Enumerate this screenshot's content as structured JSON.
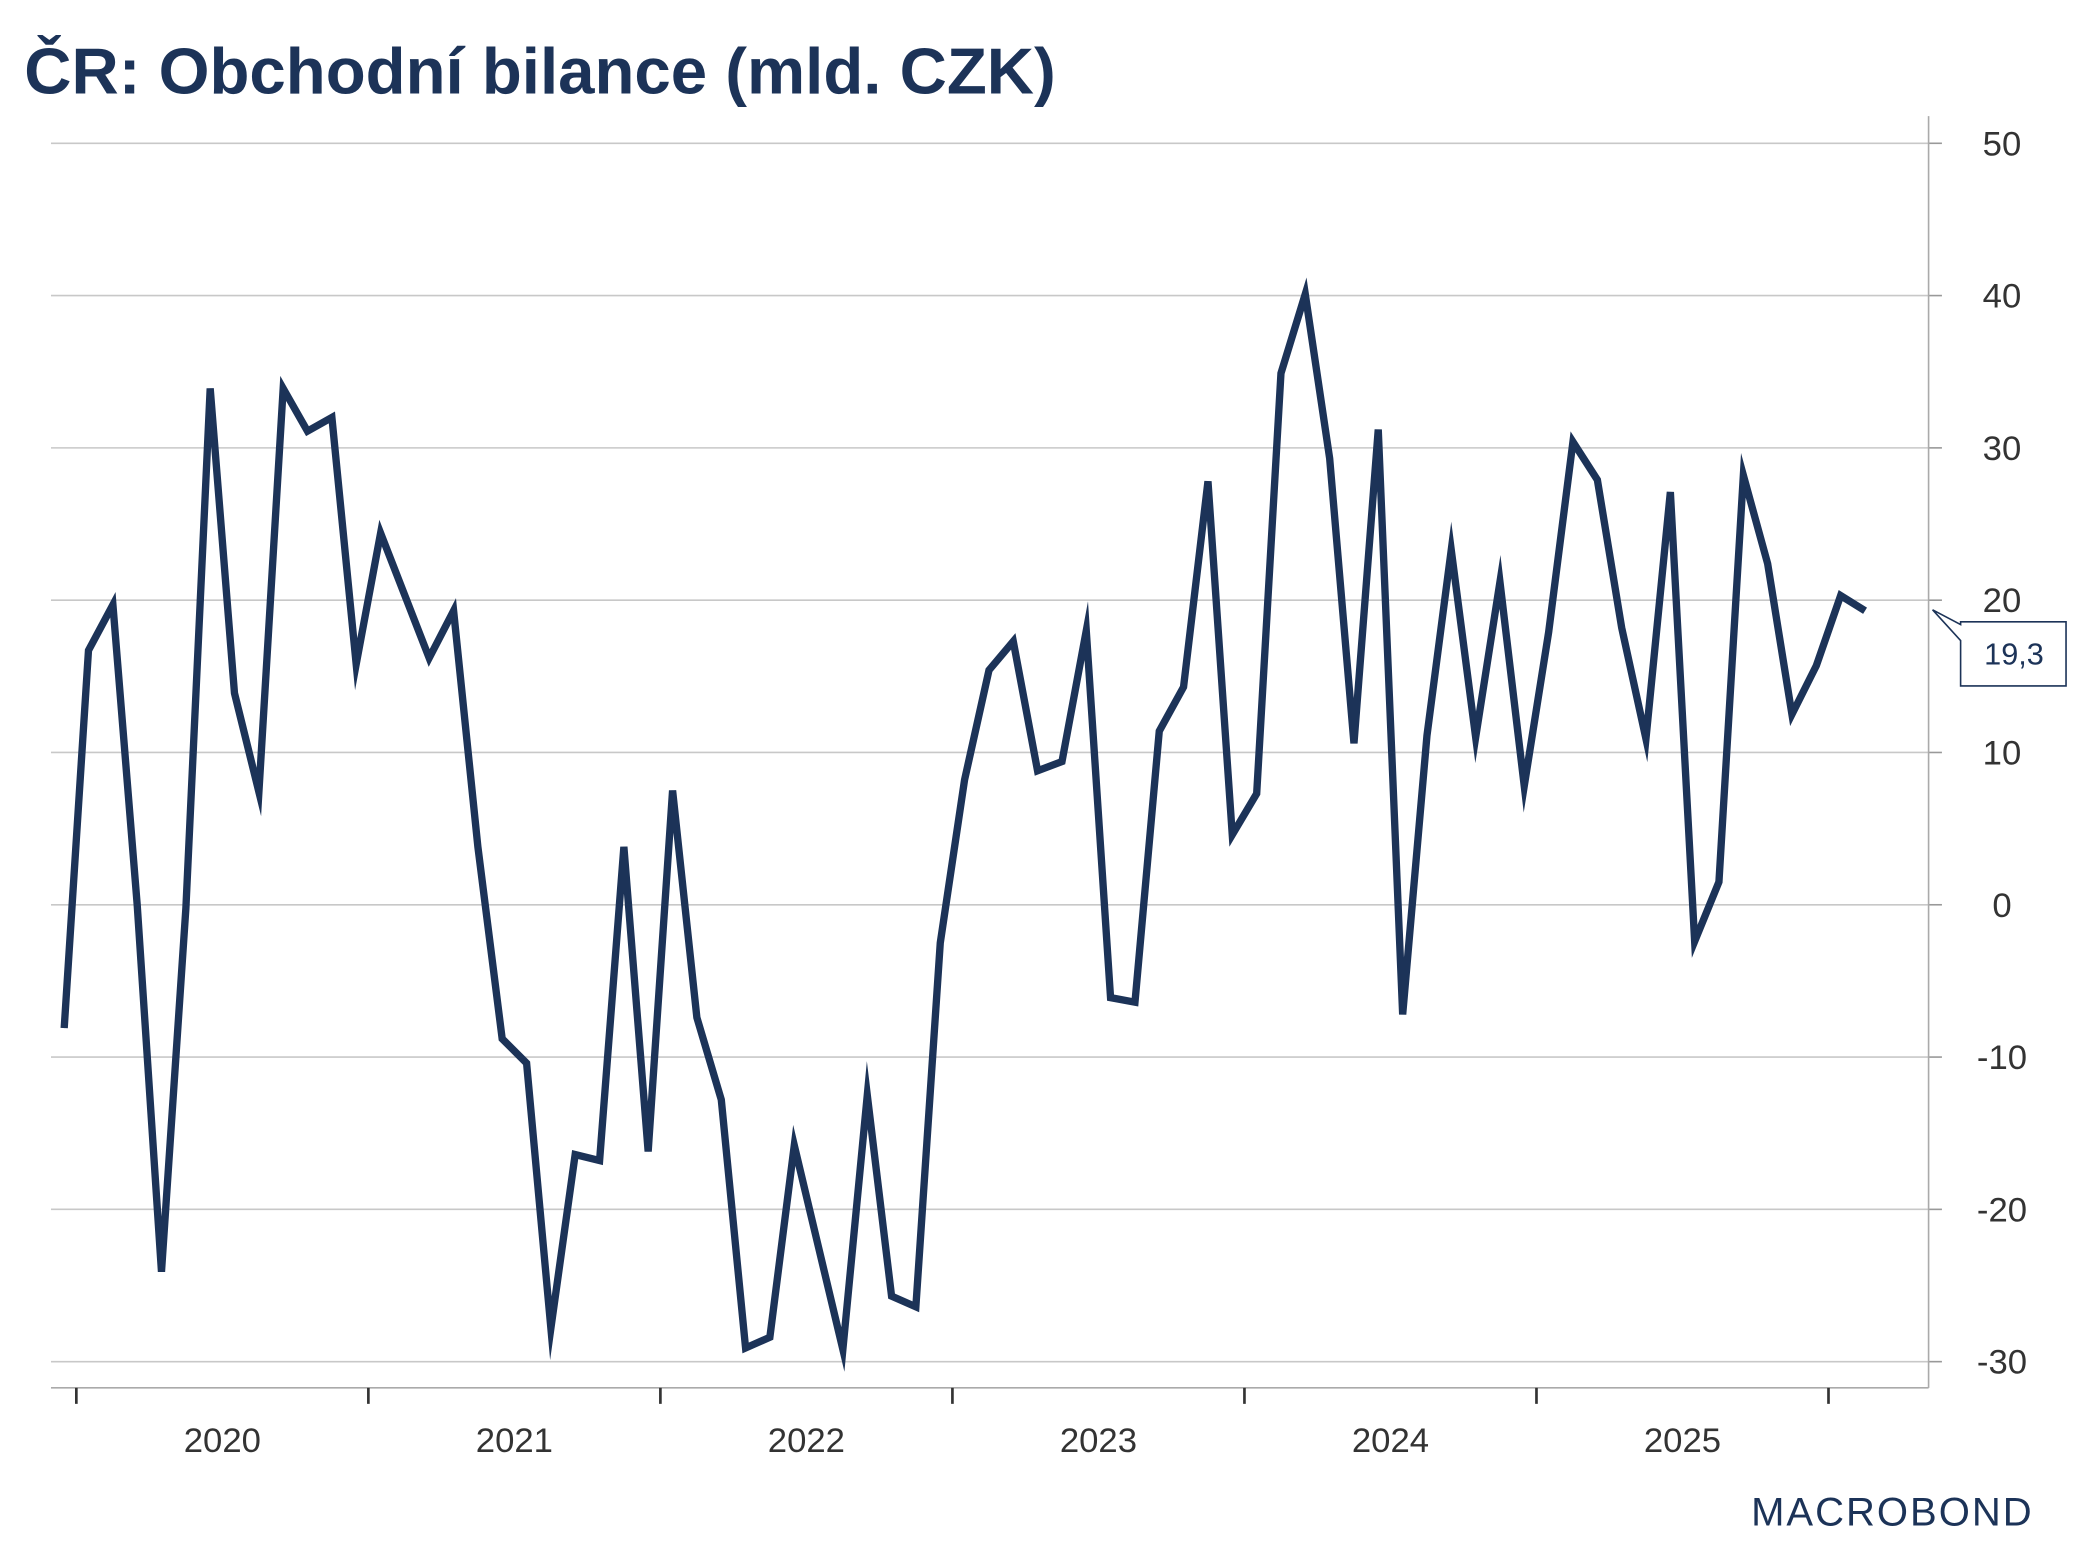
{
  "chart_data": {
    "type": "line",
    "title": "ČR: Obchodní bilance (mld. CZK)",
    "xlabel": "",
    "ylabel": "",
    "ylim": [
      -30,
      50
    ],
    "yticks": [
      50,
      40,
      30,
      20,
      10,
      0,
      -10,
      -20,
      -30
    ],
    "ytick_labels": [
      "50",
      "40",
      "30",
      "20",
      "10",
      "0",
      "-10",
      "-20",
      "-30"
    ],
    "xticks": [
      "2020",
      "2021",
      "2022",
      "2023",
      "2024",
      "2025"
    ],
    "grid": true,
    "axis_side": "right",
    "start": "2019-12",
    "frequency": "monthly",
    "series": [
      {
        "name": "Obchodní bilance",
        "color": "#1c3358",
        "values": [
          -8.1,
          16.7,
          19.7,
          0.0,
          -24.1,
          -0.2,
          33.9,
          13.9,
          7.4,
          33.9,
          31.1,
          32.0,
          15.8,
          24.4,
          20.3,
          16.2,
          19.3,
          3.8,
          -8.8,
          -10.4,
          -27.8,
          -16.4,
          -16.8,
          3.8,
          -16.2,
          7.5,
          -7.4,
          -12.8,
          -29.1,
          -28.4,
          -15.8,
          -22.5,
          -29.2,
          -12.5,
          -25.7,
          -26.4,
          -2.5,
          8.2,
          15.4,
          17.3,
          8.8,
          9.4,
          18.0,
          -6.1,
          -6.4,
          11.4,
          14.3,
          27.8,
          4.6,
          7.3,
          34.9,
          40.1,
          29.3,
          10.6,
          31.2,
          -7.2,
          11.1,
          23.3,
          11.0,
          21.2,
          7.8,
          17.9,
          30.4,
          27.9,
          18.2,
          10.9,
          27.1,
          -2.4,
          1.5,
          28.2,
          22.4,
          12.5,
          15.7,
          20.3,
          19.3
        ]
      }
    ],
    "last_value_label": "19,3",
    "source_logo": "MACROBOND"
  }
}
